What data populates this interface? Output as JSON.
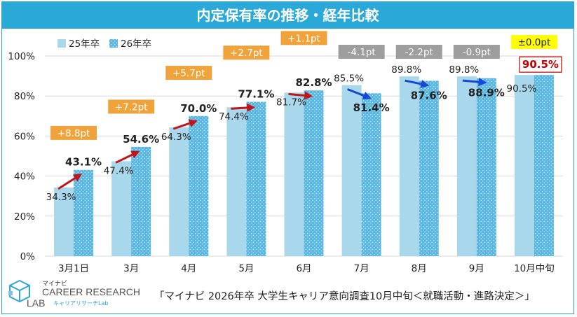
{
  "title": "内定保有率の推移・経年比較",
  "source_note": "「マイナビ 2026年卒 大学生キャリア意向調査10月中旬＜就職活動・進路決定＞」",
  "logo": {
    "top": "マイナビ",
    "main1": "CAREER RESEARCH",
    "main2": "LAB",
    "sub": "キャリアリサーチLab"
  },
  "colors": {
    "series_25": "#a9d8ec",
    "series_26": "#5ab7e2",
    "up_arrow": "#c0151b",
    "down_arrow": "#1846d6",
    "badge_up": "#f0a33b",
    "badge_down": "#9e9e9e",
    "badge_flat": "#ffff00",
    "highlight_border": "#c00000"
  },
  "chart_data": {
    "type": "bar",
    "title": "内定保有率の推移・経年比較",
    "categories": [
      "3月1日",
      "3月",
      "4月",
      "5月",
      "6月",
      "7月",
      "8月",
      "9月",
      "10月中旬"
    ],
    "series": [
      {
        "name": "25年卒",
        "values": [
          34.3,
          47.4,
          64.3,
          74.4,
          81.7,
          85.5,
          89.8,
          89.8,
          90.5
        ]
      },
      {
        "name": "26年卒",
        "values": [
          43.1,
          54.6,
          70.0,
          77.1,
          82.8,
          81.4,
          87.6,
          88.9,
          90.5
        ]
      }
    ],
    "series_labels": [
      [
        "34.3%",
        "47.4%",
        "64.3%",
        "74.4%",
        "81.7%",
        "85.5%",
        "89.8%",
        "89.8%",
        "90.5%"
      ],
      [
        "43.1%",
        "54.6%",
        "70.0%",
        "77.1%",
        "82.8%",
        "81.4%",
        "87.6%",
        "88.9%",
        "90.5%"
      ]
    ],
    "differences": [
      "+8.8pt",
      "+7.2pt",
      "+5.7pt",
      "+2.7pt",
      "+1.1pt",
      "-4.1pt",
      "-2.2pt",
      "-0.9pt",
      "±0.0pt"
    ],
    "y_ticks": [
      "0%",
      "20%",
      "40%",
      "60%",
      "80%",
      "100%"
    ],
    "ylim": [
      0,
      100
    ],
    "xlabel": "",
    "ylabel": "",
    "legend_position": "top-left"
  }
}
